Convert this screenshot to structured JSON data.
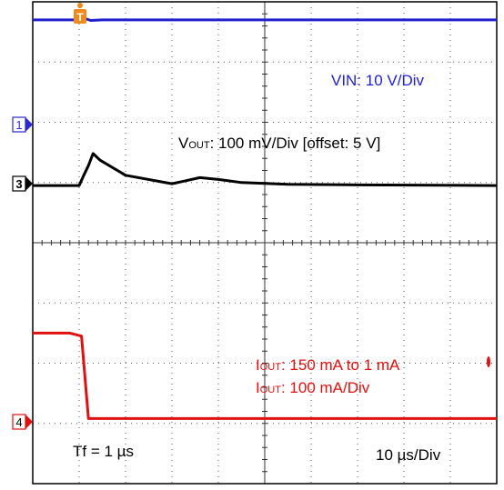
{
  "chart_data": {
    "type": "line",
    "annotations": {
      "vin": "VIN: 10 V/Div",
      "vout_prefix": "V",
      "vout_sub": "OUT",
      "vout_rest": ": 100 mV/Div [offset: 5 V]",
      "iout1_prefix": "I",
      "iout1_sub": "OUT",
      "iout1_rest": ": 150 mA to 1 mA",
      "iout2_prefix": "I",
      "iout2_sub": "OUT",
      "iout2_rest": ": 100 mA/Div",
      "tf": "Tf = 1 µs",
      "timebase": "10 µs/Div"
    },
    "channel_markers": [
      "1",
      "3",
      "4"
    ],
    "trigger_marker": "T",
    "grid": true,
    "divisions": {
      "x": 10,
      "y": 8
    },
    "series": [
      {
        "name": "VIN",
        "color": "#1f1fd0",
        "points": [
          [
            0,
            7.7
          ],
          [
            1.0,
            7.7
          ],
          [
            1.1,
            7.73
          ],
          [
            1.25,
            7.69
          ],
          [
            1.5,
            7.7
          ],
          [
            10,
            7.7
          ]
        ]
      },
      {
        "name": "VOUT",
        "color": "#000000",
        "points": [
          [
            0,
            4.95
          ],
          [
            1.0,
            4.95
          ],
          [
            1.1,
            5.12
          ],
          [
            1.2,
            5.28
          ],
          [
            1.3,
            5.48
          ],
          [
            1.45,
            5.37
          ],
          [
            2.0,
            5.12
          ],
          [
            3.0,
            4.98
          ],
          [
            3.3,
            5.03
          ],
          [
            3.6,
            5.08
          ],
          [
            4.0,
            5.05
          ],
          [
            4.5,
            5.0
          ],
          [
            5.5,
            4.97
          ],
          [
            7,
            4.96
          ],
          [
            10,
            4.95
          ]
        ]
      },
      {
        "name": "IOUT",
        "color": "#e01010",
        "points": [
          [
            0,
            2.5
          ],
          [
            0.8,
            2.5
          ],
          [
            1.05,
            2.45
          ],
          [
            1.2,
            1.08
          ],
          [
            10,
            1.08
          ]
        ]
      }
    ]
  }
}
